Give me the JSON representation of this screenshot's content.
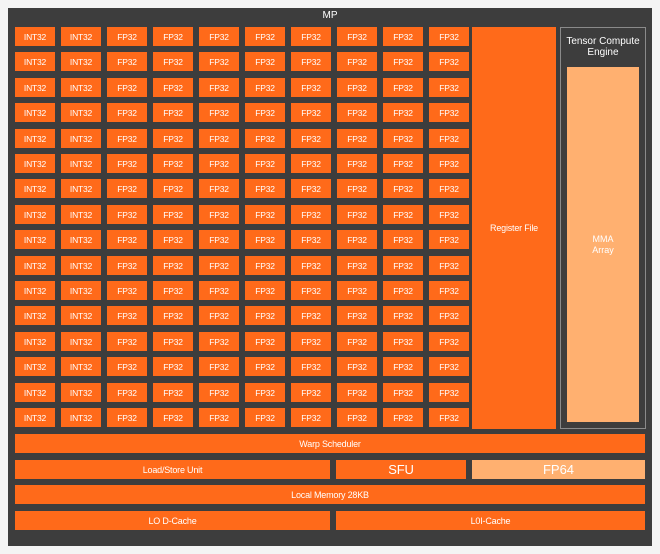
{
  "mp": {
    "title": "MP"
  },
  "core_grid": {
    "columns": [
      "INT32",
      "INT32",
      "FP32",
      "FP32",
      "FP32",
      "FP32",
      "FP32",
      "FP32",
      "FP32",
      "FP32"
    ],
    "row_count": 16
  },
  "register_file": {
    "label": "Register File"
  },
  "tensor_engine": {
    "title_line1": "Tensor Compute",
    "title_line2": "Engine",
    "mma_line1": "MMA",
    "mma_line2": "Array"
  },
  "warp_scheduler": {
    "label": "Warp Scheduler"
  },
  "load_store": {
    "label": "Load/Store Unit"
  },
  "sfu": {
    "label": "SFU"
  },
  "fp64": {
    "label": "FP64"
  },
  "local_memory": {
    "label": "Local Memory 28KB"
  },
  "l0_dcache": {
    "label": "LO D-Cache"
  },
  "l0i_cache": {
    "label": "L0I-Cache"
  },
  "colors": {
    "frame": "#3d3d3d",
    "unit": "#ff6a1a",
    "light_unit": "#ffb070",
    "background": "#f4f4f4"
  }
}
